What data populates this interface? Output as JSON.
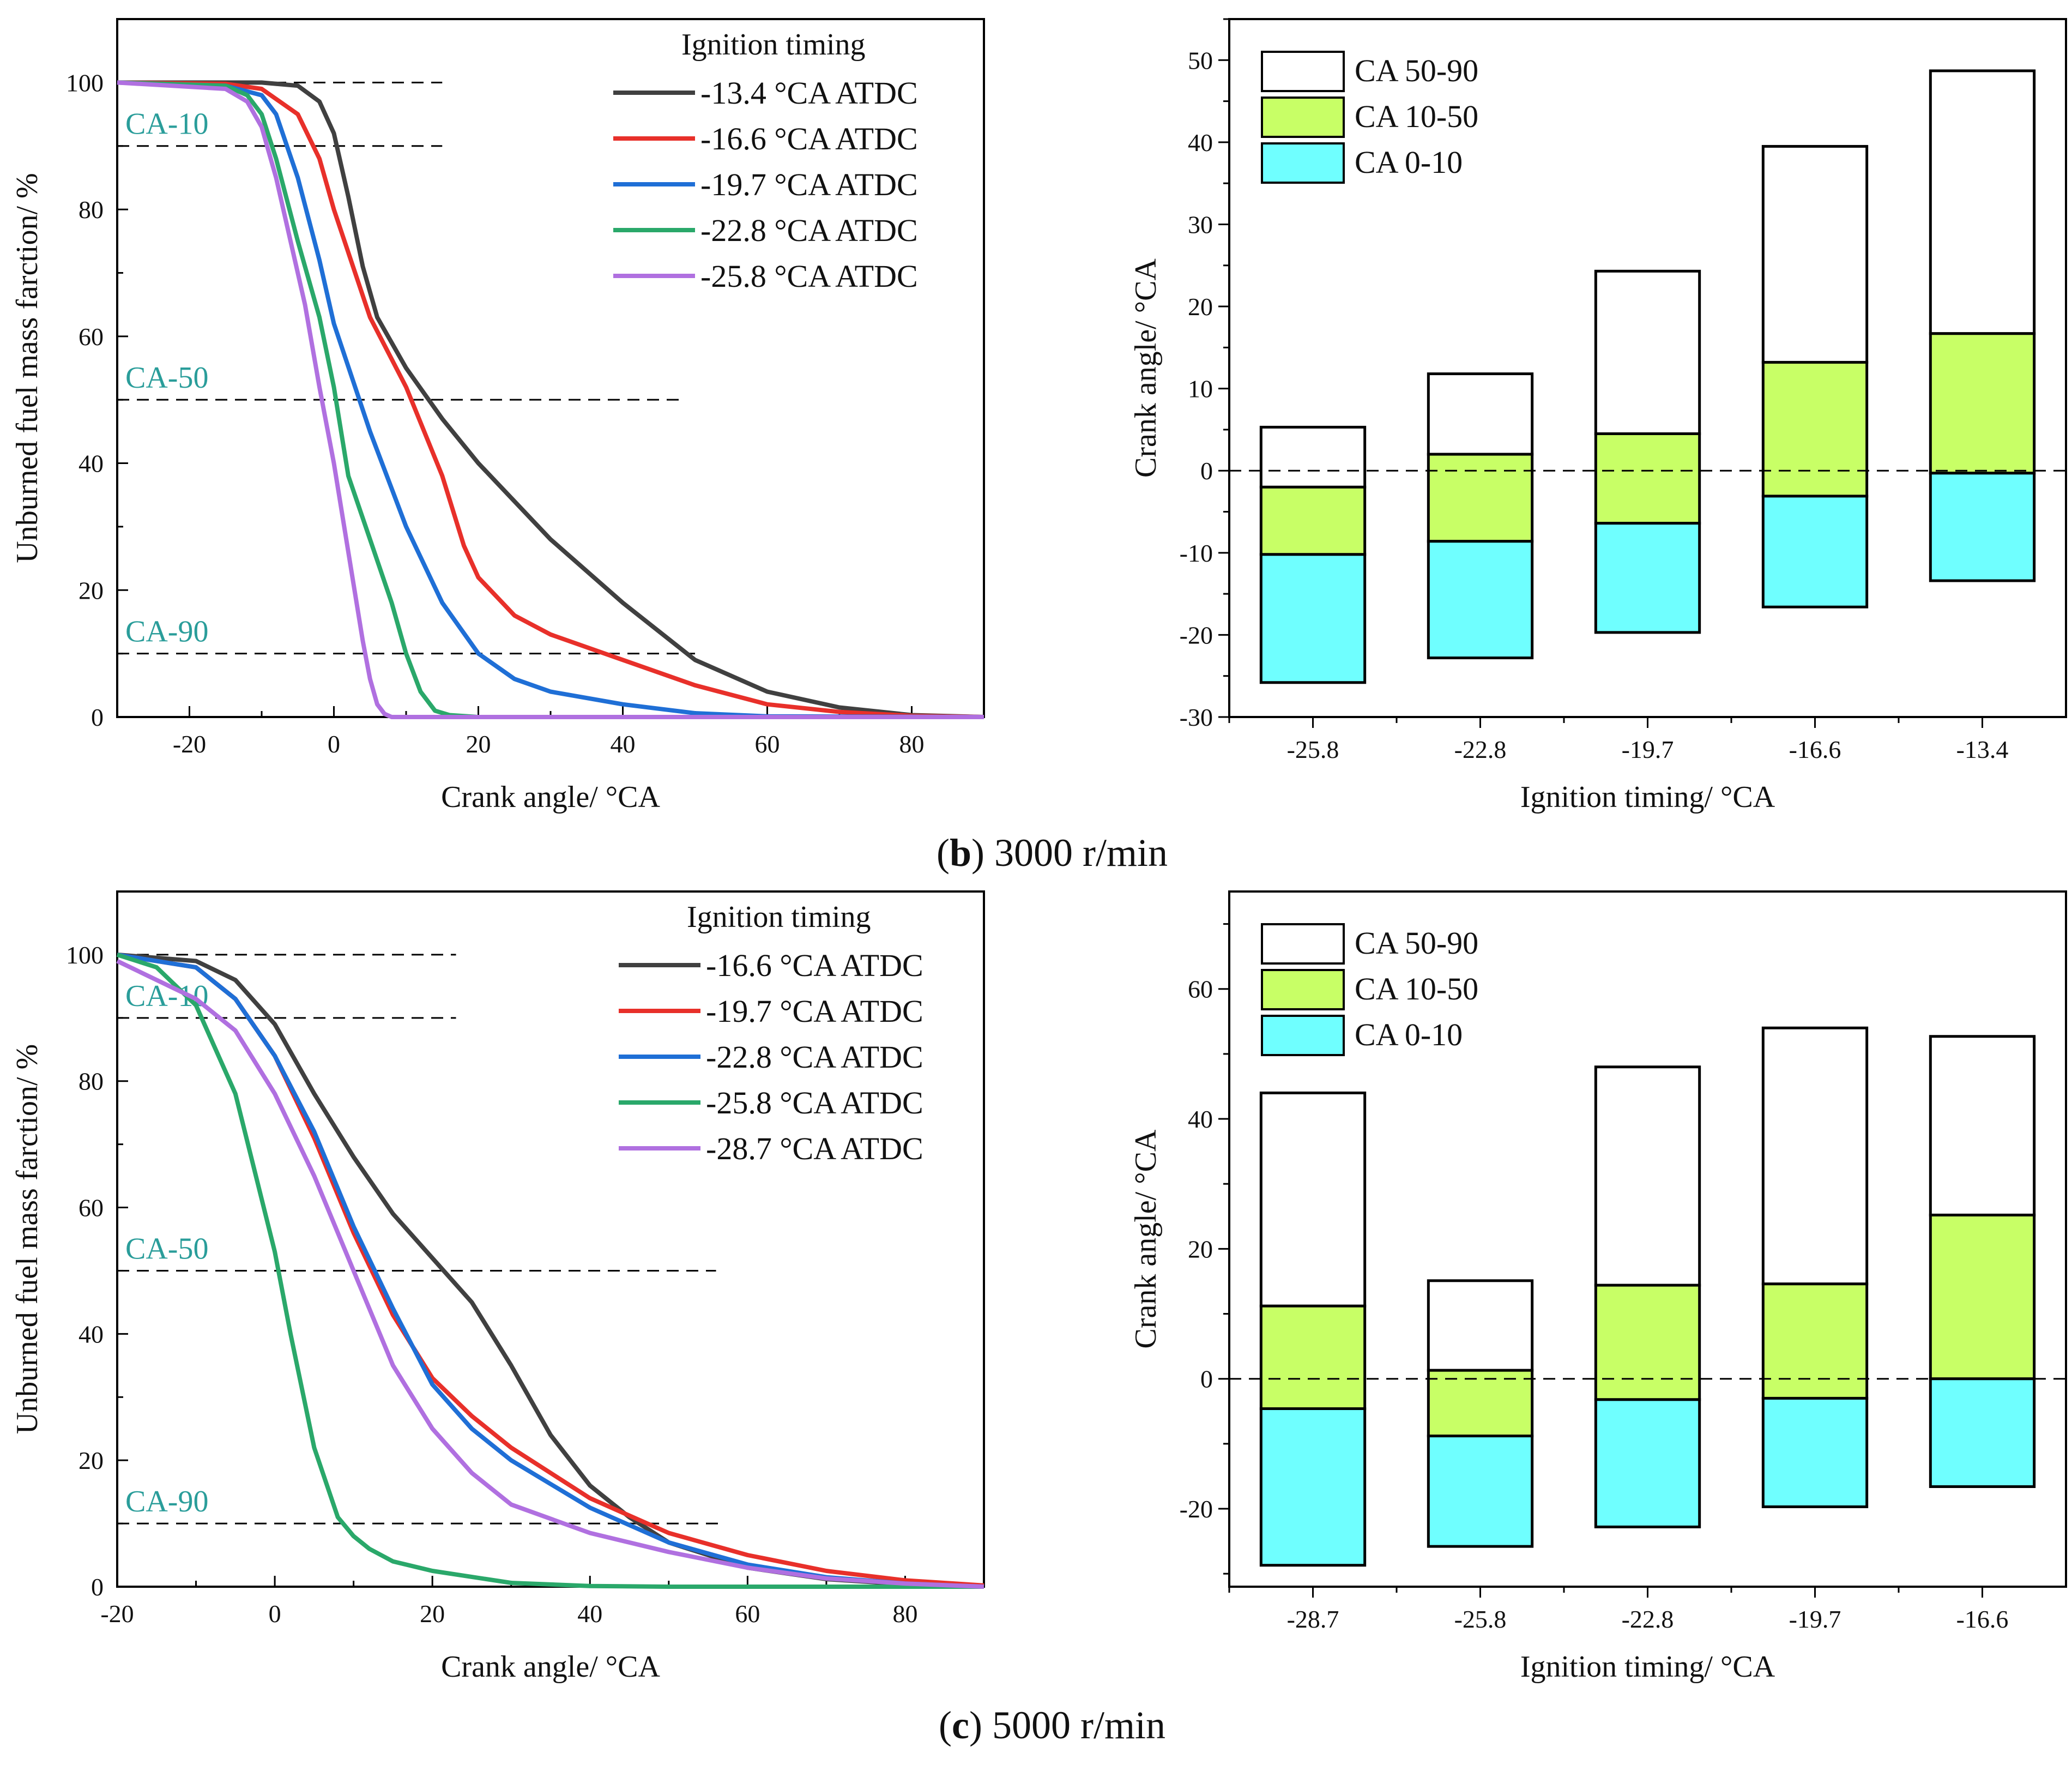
{
  "colors": {
    "curve_1": "#404040",
    "curve_2": "#e8302a",
    "curve_3": "#1f6fd6",
    "curve_4": "#2aa86a",
    "curve_5": "#b070e0",
    "stack_50_90": "#ffffff",
    "stack_10_50": "#c8ff66",
    "stack_0_10": "#6fffff",
    "ref_label": "#2a9d9a"
  },
  "chart_data": [
    {
      "id": "b-line",
      "type": "line",
      "title": "",
      "xlabel": "Crank angle/ °CA",
      "ylabel": "Unburned fuel mass farction/ %",
      "xlim": [
        -30,
        90
      ],
      "ylim": [
        0,
        110
      ],
      "xticks": [
        -20,
        0,
        20,
        40,
        60,
        80
      ],
      "yticks": [
        0,
        20,
        40,
        60,
        80,
        100
      ],
      "legend_title": "Ignition timing",
      "legend_position": "top-right",
      "reference_lines": [
        {
          "label": "",
          "y": 100,
          "x_end": 15
        },
        {
          "label": "CA-10",
          "y": 90,
          "x_end": 15
        },
        {
          "label": "CA-50",
          "y": 50,
          "x_end": 48
        },
        {
          "label": "CA-90",
          "y": 10,
          "x_end": 50
        }
      ],
      "series": [
        {
          "name": "-13.4 °CA ATDC",
          "color_key": "curve_1",
          "x": [
            -30,
            -10,
            -5,
            -2,
            0,
            2,
            4,
            6,
            10,
            15,
            20,
            30,
            40,
            50,
            60,
            70,
            80,
            90
          ],
          "y": [
            100,
            100,
            99.5,
            97,
            92,
            82,
            71,
            63,
            55,
            47,
            40,
            28,
            18,
            9,
            4,
            1.5,
            0.3,
            0
          ]
        },
        {
          "name": "-16.6 °CA ATDC",
          "color_key": "curve_2",
          "x": [
            -30,
            -15,
            -10,
            -5,
            -2,
            0,
            5,
            10,
            15,
            18,
            20,
            25,
            30,
            40,
            50,
            60,
            70,
            80,
            90
          ],
          "y": [
            100,
            99.8,
            99,
            95,
            88,
            80,
            63,
            52,
            38,
            27,
            22,
            16,
            13,
            9,
            5,
            2,
            0.8,
            0.2,
            0
          ]
        },
        {
          "name": "-19.7 °CA ATDC",
          "color_key": "curve_3",
          "x": [
            -30,
            -15,
            -10,
            -8,
            -5,
            -2,
            0,
            5,
            10,
            15,
            20,
            25,
            30,
            40,
            50,
            60,
            90
          ],
          "y": [
            100,
            99.5,
            98,
            95,
            85,
            72,
            62,
            45,
            30,
            18,
            10,
            6,
            4,
            2,
            0.6,
            0.1,
            0
          ]
        },
        {
          "name": "-22.8 °CA ATDC",
          "color_key": "curve_4",
          "x": [
            -30,
            -15,
            -12,
            -10,
            -8,
            -5,
            -2,
            0,
            2,
            5,
            8,
            10,
            12,
            14,
            16,
            20,
            30,
            90
          ],
          "y": [
            100,
            99.5,
            98,
            95,
            88,
            75,
            63,
            52,
            38,
            28,
            18,
            10,
            4,
            1,
            0.3,
            0,
            0,
            0
          ]
        },
        {
          "name": "-25.8 °CA ATDC",
          "color_key": "curve_5",
          "x": [
            -30,
            -15,
            -12,
            -10,
            -8,
            -6,
            -4,
            -2,
            0,
            2,
            4,
            5,
            6,
            7,
            8,
            10,
            20,
            90
          ],
          "y": [
            100,
            99,
            97,
            93,
            85,
            75,
            65,
            52,
            40,
            26,
            12,
            6,
            2,
            0.5,
            0,
            0,
            0,
            0
          ]
        }
      ]
    },
    {
      "id": "b-bar",
      "type": "bar",
      "stacked": true,
      "xlabel": "Ignition timing/ °CA",
      "ylabel": "Crank angle/ °CA",
      "ylim": [
        -30,
        55
      ],
      "yticks": [
        -30,
        -20,
        -10,
        0,
        10,
        20,
        30,
        40,
        50
      ],
      "categories": [
        "-25.8",
        "-22.8",
        "-19.7",
        "-16.6",
        "-13.4"
      ],
      "legend_position": "top-left",
      "zero_line": 0,
      "series": [
        {
          "name": "CA 50-90",
          "color_key": "stack_50_90",
          "bottom": [
            -2,
            2,
            4.5,
            13.2,
            16.7
          ],
          "top": [
            5.3,
            11.8,
            24.3,
            39.5,
            48.7
          ]
        },
        {
          "name": "CA 10-50",
          "color_key": "stack_10_50",
          "bottom": [
            -10.2,
            -8.6,
            -6.4,
            -3.1,
            -0.3
          ],
          "top": [
            -2,
            2,
            4.5,
            13.2,
            16.7
          ]
        },
        {
          "name": "CA  0-10",
          "color_key": "stack_0_10",
          "bottom": [
            -25.8,
            -22.8,
            -19.7,
            -16.6,
            -13.4
          ],
          "top": [
            -10.2,
            -8.6,
            -6.4,
            -3.1,
            -0.3
          ]
        }
      ]
    },
    {
      "id": "c-line",
      "type": "line",
      "title": "",
      "xlabel": "Crank angle/ °CA",
      "ylabel": "Unburned fuel mass farction/ %",
      "xlim": [
        -20,
        90
      ],
      "ylim": [
        0,
        110
      ],
      "xticks": [
        -20,
        0,
        20,
        40,
        60,
        80
      ],
      "yticks": [
        0,
        20,
        40,
        60,
        80,
        100
      ],
      "legend_title": "Ignition timing",
      "legend_position": "top-right",
      "reference_lines": [
        {
          "label": "",
          "y": 100,
          "x_end": 23
        },
        {
          "label": "CA-10",
          "y": 90,
          "x_end": 23
        },
        {
          "label": "CA-50",
          "y": 50,
          "x_end": 56
        },
        {
          "label": "CA-90",
          "y": 10,
          "x_end": 57
        }
      ],
      "series": [
        {
          "name": "-16.6 °CA ATDC",
          "color_key": "curve_1",
          "x": [
            -20,
            -10,
            -5,
            0,
            5,
            10,
            15,
            20,
            25,
            30,
            35,
            40,
            45,
            50,
            60,
            70,
            80,
            90
          ],
          "y": [
            100,
            99,
            96,
            89,
            78,
            68,
            59,
            52,
            45,
            35,
            24,
            16,
            11,
            7,
            3,
            1.2,
            0.4,
            0
          ]
        },
        {
          "name": "-19.7 °CA ATDC",
          "color_key": "curve_2",
          "x": [
            -20,
            -10,
            -5,
            0,
            5,
            10,
            15,
            20,
            25,
            30,
            40,
            50,
            60,
            70,
            80,
            90
          ],
          "y": [
            100,
            98,
            93,
            84,
            71,
            56,
            43,
            33,
            27,
            22,
            14,
            8.5,
            5,
            2.5,
            1,
            0.2
          ]
        },
        {
          "name": "-22.8 °CA ATDC",
          "color_key": "curve_3",
          "x": [
            -20,
            -10,
            -5,
            0,
            5,
            10,
            15,
            20,
            25,
            30,
            40,
            50,
            60,
            70,
            80,
            90
          ],
          "y": [
            100,
            98,
            93,
            84,
            72,
            57,
            44,
            32,
            25,
            20,
            12.5,
            7,
            3.5,
            1.5,
            0.5,
            0
          ]
        },
        {
          "name": "-25.8 °CA ATDC",
          "color_key": "curve_4",
          "x": [
            -20,
            -15,
            -10,
            -5,
            -2,
            0,
            2,
            5,
            8,
            10,
            12,
            15,
            20,
            30,
            40,
            50,
            90
          ],
          "y": [
            100,
            98,
            92,
            78,
            63,
            53,
            40,
            22,
            11,
            8,
            6,
            4,
            2.5,
            0.6,
            0.1,
            0,
            0
          ]
        },
        {
          "name": "-28.7 °CA ATDC",
          "color_key": "curve_5",
          "x": [
            -20,
            -10,
            -5,
            0,
            5,
            10,
            15,
            20,
            25,
            30,
            40,
            50,
            60,
            70,
            80,
            90
          ],
          "y": [
            99,
            93,
            88,
            78,
            65,
            50,
            35,
            25,
            18,
            13,
            8.5,
            5.5,
            3,
            1.3,
            0.5,
            0
          ]
        }
      ]
    },
    {
      "id": "c-bar",
      "type": "bar",
      "stacked": true,
      "xlabel": "Ignition timing/ °CA",
      "ylabel": "Crank angle/ °CA",
      "ylim": [
        -32,
        75
      ],
      "yticks": [
        -20,
        0,
        20,
        40,
        60
      ],
      "categories": [
        "-28.7",
        "-25.8",
        "-22.8",
        "-19.7",
        "-16.6"
      ],
      "legend_position": "top-left",
      "zero_line": 0,
      "series": [
        {
          "name": "CA 50-90",
          "color_key": "stack_50_90",
          "bottom": [
            11.2,
            1.3,
            14.4,
            14.6,
            25.2
          ],
          "top": [
            44,
            15.1,
            48,
            54,
            52.7
          ]
        },
        {
          "name": "CA 10-50",
          "color_key": "stack_10_50",
          "bottom": [
            -4.6,
            -8.8,
            -3.2,
            -3,
            0
          ],
          "top": [
            11.2,
            1.3,
            14.4,
            14.6,
            25.2
          ]
        },
        {
          "name": "CA  0-10",
          "color_key": "stack_0_10",
          "bottom": [
            -28.7,
            -25.8,
            -22.8,
            -19.7,
            -16.6
          ],
          "top": [
            -4.6,
            -8.8,
            -3.2,
            -3,
            0
          ]
        }
      ]
    }
  ],
  "captions": [
    {
      "letter": "b",
      "open": "(",
      "close": ")",
      "text": " 3000 r/min"
    },
    {
      "letter": "c",
      "open": "(",
      "close": ")",
      "text": " 5000 r/min"
    }
  ]
}
